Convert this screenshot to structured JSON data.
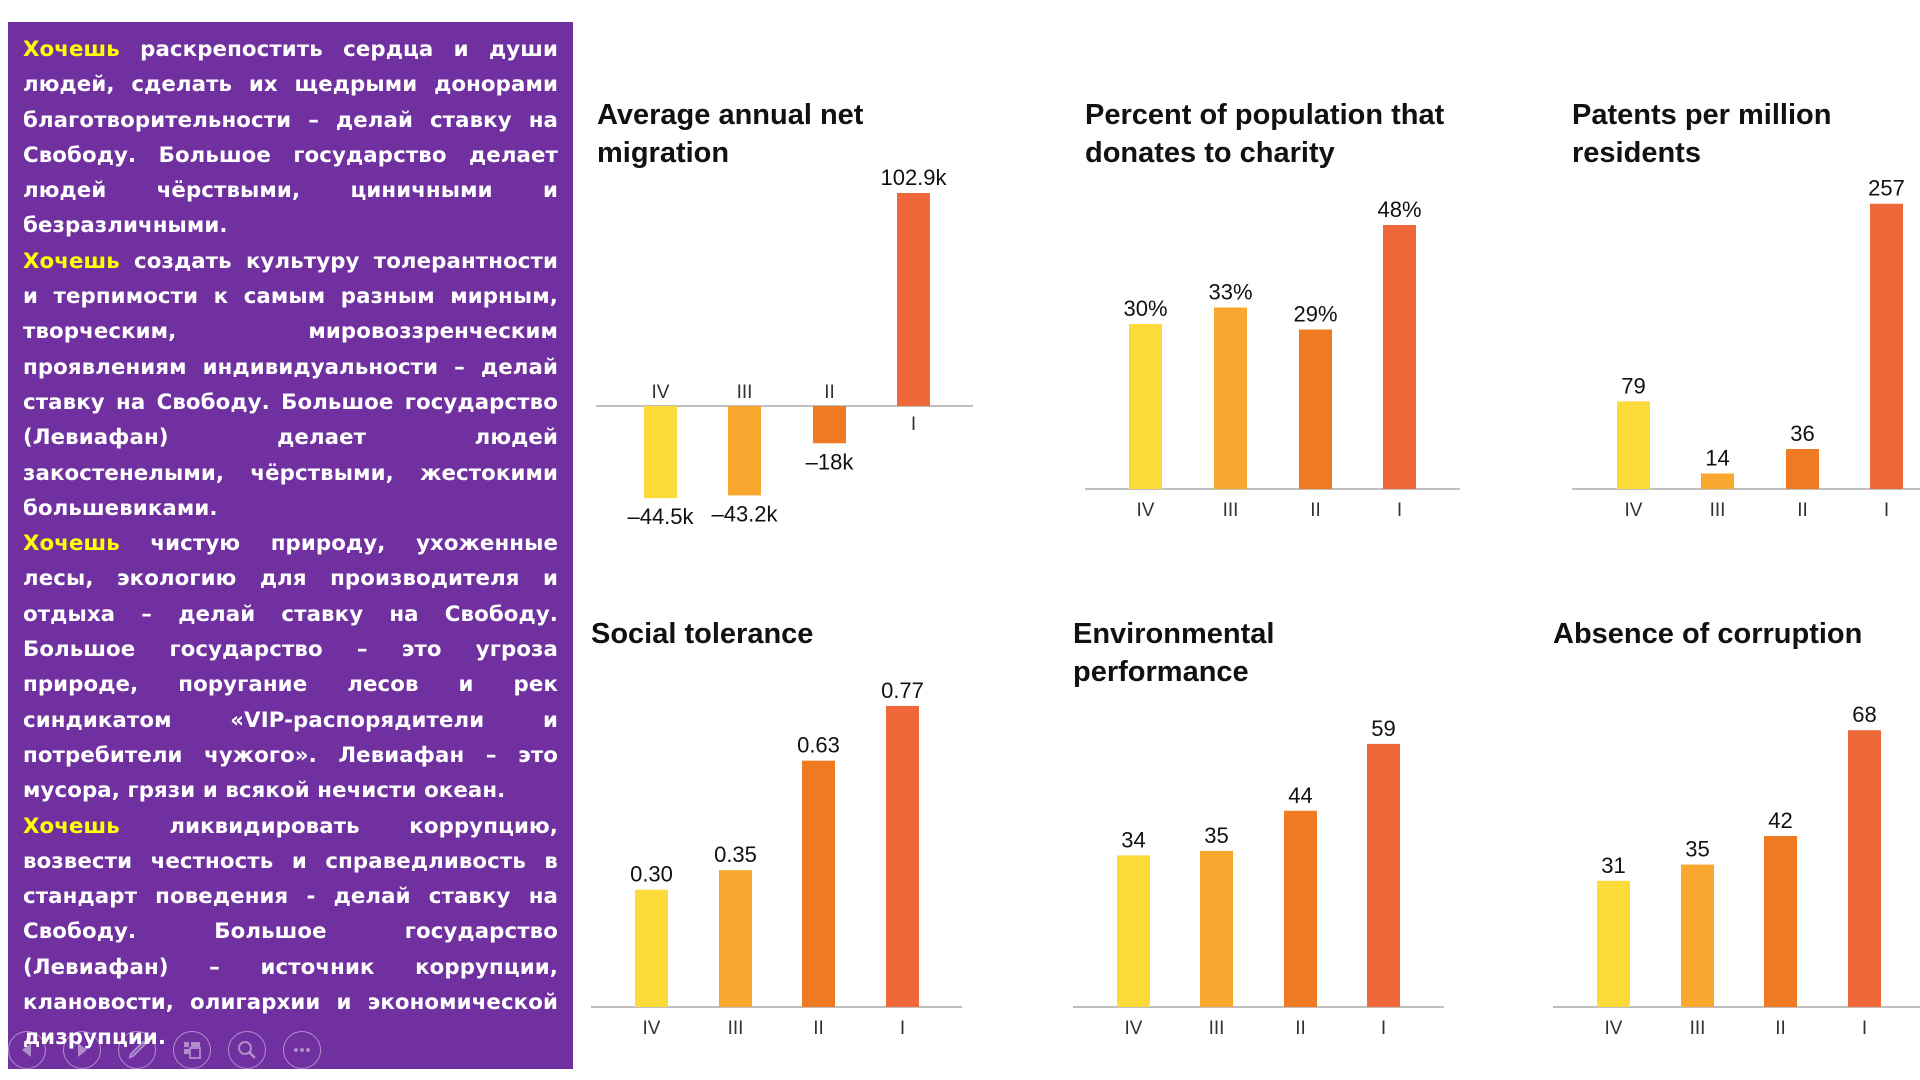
{
  "panel": {
    "background": "#7030A0",
    "highlight_color": "#FFFF00",
    "paragraphs": [
      {
        "highlight": "Хочешь",
        "text": " раскрепостить сердца и души людей, сделать их щедрыми донорами благотворительности – делай ставку на Свободу. Большое государство делает людей чёрствыми, циничными и безразличными."
      },
      {
        "highlight": "Хочешь",
        "text": " создать культуру толерантности и терпимости к самым разным мирным, творческим, мировоззренческим проявлениям индивидуальности – делай ставку на Свободу. Большое государство (Левиафан) делает людей закостенелыми, чёрствыми, жестокими большевиками."
      },
      {
        "highlight": "Хочешь",
        "text": " чистую природу, ухоженные лесы, экологию для производителя и отдыха – делай ставку на Свободу. Большое государство – это угроза природе, поругание лесов и рек синдикатом «VIP-распорядители и потребители чужого». Левиафан – это мусора, грязи и всякой нечисти океан."
      },
      {
        "highlight": "Хочешь",
        "text": " ликвидировать коррупцию, возвести честность и справедливость в стандарт поведения - делай ставку на Свободу. Большое государство (Левиафан) – источник коррупции, клановости, олигархии и экономической дизрупции."
      }
    ]
  },
  "nav_icons": [
    "previous-slide-icon",
    "next-slide-icon",
    "pen-icon",
    "slide-sorter-icon",
    "zoom-icon",
    "more-options-icon"
  ],
  "colors": {
    "IV": "#FBDA3A",
    "III": "#F9A72F",
    "II": "#EF7A22",
    "I": "#EE683A",
    "axis": "#AAAAAA"
  },
  "chart_data": [
    {
      "type": "bar",
      "title": "Average annual net migration",
      "title_lines": [
        "Average annual net",
        "migration"
      ],
      "categories": [
        "IV",
        "III",
        "II",
        "I"
      ],
      "values": [
        -44.5,
        -43.2,
        -18,
        102.9
      ],
      "labels": [
        "–44.5k",
        "–43.2k",
        "–18k",
        "102.9k"
      ],
      "unit": "thousand people",
      "xlabel": "",
      "ylabel": "",
      "ylim": [
        -44.5,
        102.9
      ]
    },
    {
      "type": "bar",
      "title": "Percent of population that donates to charity",
      "title_lines": [
        "Percent of population that",
        "donates to charity"
      ],
      "categories": [
        "IV",
        "III",
        "II",
        "I"
      ],
      "values": [
        30,
        33,
        29,
        48
      ],
      "labels": [
        "30%",
        "33%",
        "29%",
        "48%"
      ],
      "unit": "%",
      "xlabel": "",
      "ylabel": "",
      "ylim": [
        0,
        48
      ]
    },
    {
      "type": "bar",
      "title": "Patents per million residents",
      "title_lines": [
        "Patents per million",
        "residents"
      ],
      "categories": [
        "IV",
        "III",
        "II",
        "I"
      ],
      "values": [
        79,
        14,
        36,
        257
      ],
      "labels": [
        "79",
        "14",
        "36",
        "257"
      ],
      "xlabel": "",
      "ylabel": "",
      "ylim": [
        0,
        257
      ]
    },
    {
      "type": "bar",
      "title": "Social tolerance",
      "title_lines": [
        "Social tolerance"
      ],
      "categories": [
        "IV",
        "III",
        "II",
        "I"
      ],
      "values": [
        0.3,
        0.35,
        0.63,
        0.77
      ],
      "labels": [
        "0.30",
        "0.35",
        "0.63",
        "0.77"
      ],
      "xlabel": "",
      "ylabel": "",
      "ylim": [
        0,
        0.77
      ]
    },
    {
      "type": "bar",
      "title": "Environmental performance",
      "title_lines": [
        "Environmental",
        "performance"
      ],
      "categories": [
        "IV",
        "III",
        "II",
        "I"
      ],
      "values": [
        34,
        35,
        44,
        59
      ],
      "labels": [
        "34",
        "35",
        "44",
        "59"
      ],
      "xlabel": "",
      "ylabel": "",
      "ylim": [
        0,
        59
      ]
    },
    {
      "type": "bar",
      "title": "Absence of corruption",
      "title_lines": [
        "Absence of corruption"
      ],
      "categories": [
        "IV",
        "III",
        "II",
        "I"
      ],
      "values": [
        31,
        35,
        42,
        68
      ],
      "labels": [
        "31",
        "35",
        "42",
        "68"
      ],
      "xlabel": "",
      "ylabel": "",
      "ylim": [
        0,
        68
      ]
    }
  ]
}
